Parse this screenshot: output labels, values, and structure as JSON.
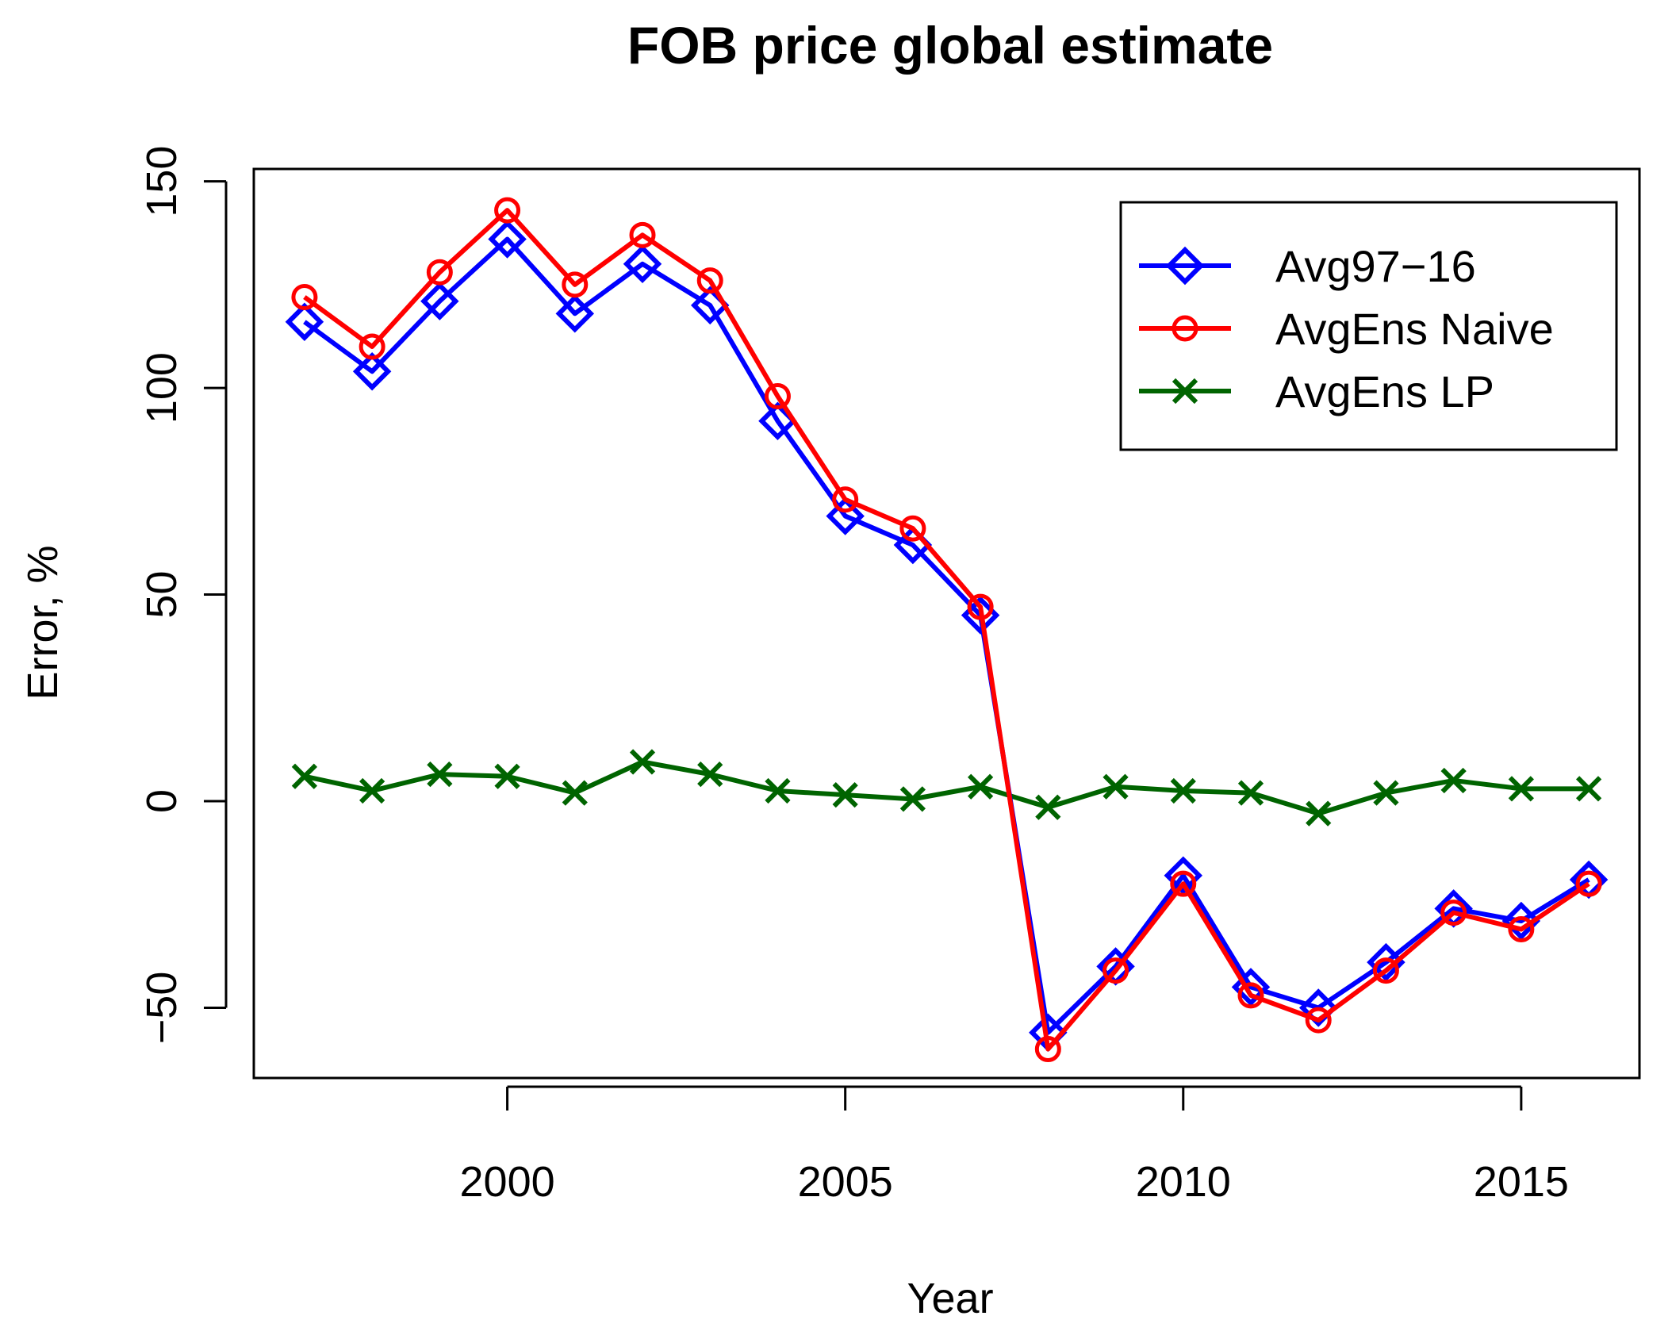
{
  "chart_data": {
    "type": "line",
    "title": "FOB price global estimate",
    "xlabel": "Year",
    "ylabel": "Error, %",
    "x": [
      1997,
      1998,
      1999,
      2000,
      2001,
      2002,
      2003,
      2004,
      2005,
      2006,
      2007,
      2008,
      2009,
      2010,
      2011,
      2012,
      2013,
      2014,
      2015,
      2016
    ],
    "xlim": [
      1996.25,
      2016.75
    ],
    "ylim": [
      -67,
      153
    ],
    "xticks": [
      2000,
      2005,
      2010,
      2015
    ],
    "yticks": [
      -50,
      0,
      50,
      100,
      150
    ],
    "grid": false,
    "legend_position": "top-right",
    "series": [
      {
        "name": "Avg97−16",
        "color": "#0000ff",
        "marker": "diamond",
        "values": [
          116,
          104,
          121,
          136,
          118,
          130,
          120,
          92,
          69,
          62,
          45,
          -56,
          -40,
          -18,
          -45,
          -50,
          -39,
          -26,
          -29,
          -19
        ]
      },
      {
        "name": "AvgEns Naive",
        "color": "#ff0000",
        "marker": "circle",
        "values": [
          122,
          110,
          128,
          143,
          125,
          137,
          126,
          98,
          73,
          66,
          47,
          -60,
          -41,
          -20,
          -47,
          -53,
          -41,
          -27,
          -31,
          -20
        ]
      },
      {
        "name": "AvgEns LP",
        "color": "#006400",
        "marker": "x",
        "values": [
          6,
          2.5,
          6.5,
          6,
          2,
          9.5,
          6.5,
          2.5,
          1.5,
          0.5,
          3.5,
          -1.5,
          3.5,
          2.5,
          2,
          -3,
          2,
          5,
          3,
          3
        ]
      }
    ]
  }
}
